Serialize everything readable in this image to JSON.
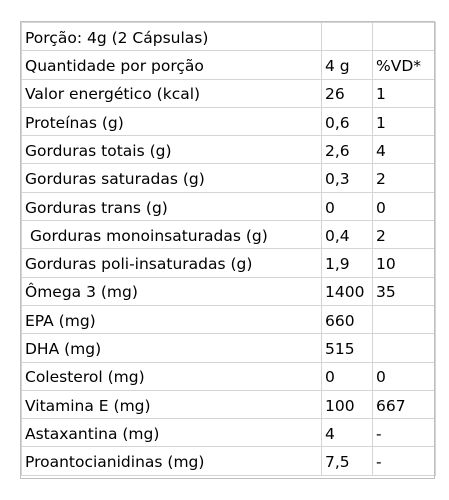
{
  "table": {
    "header": {
      "serving": "Porção: 4g (2 Cápsulas)",
      "quantity_label": "Quantidade por porção",
      "quantity_value": "4 g",
      "vd_label": "%VD*"
    },
    "rows": [
      {
        "name": "Valor energético (kcal)",
        "amount": "26",
        "vd": "1"
      },
      {
        "name": "Proteínas (g)",
        "amount": "0,6",
        "vd": "1"
      },
      {
        "name": "Gorduras totais (g)",
        "amount": "2,6",
        "vd": "4"
      },
      {
        "name": "Gorduras saturadas (g)",
        "amount": "0,3",
        "vd": "2"
      },
      {
        "name": "Gorduras trans (g)",
        "amount": "0",
        "vd": "0"
      },
      {
        "name": "Gorduras monoinsaturadas (g)",
        "amount": "0,4",
        "vd": "2"
      },
      {
        "name": "Gorduras poli-insaturadas (g)",
        "amount": "1,9",
        "vd": "10"
      },
      {
        "name": "Ômega 3 (mg)",
        "amount": "1400",
        "vd": "35"
      },
      {
        "name": "EPA (mg)",
        "amount": "660",
        "vd": ""
      },
      {
        "name": "DHA (mg)",
        "amount": "515",
        "vd": ""
      },
      {
        "name": "Colesterol (mg)",
        "amount": "0",
        "vd": "0"
      },
      {
        "name": "Vitamina E (mg)",
        "amount": "100",
        "vd": "667"
      },
      {
        "name": "Astaxantina (mg)",
        "amount": "4",
        "vd": "-"
      },
      {
        "name": "Proantocianidinas (mg)",
        "amount": "7,5",
        "vd": "-"
      }
    ]
  }
}
